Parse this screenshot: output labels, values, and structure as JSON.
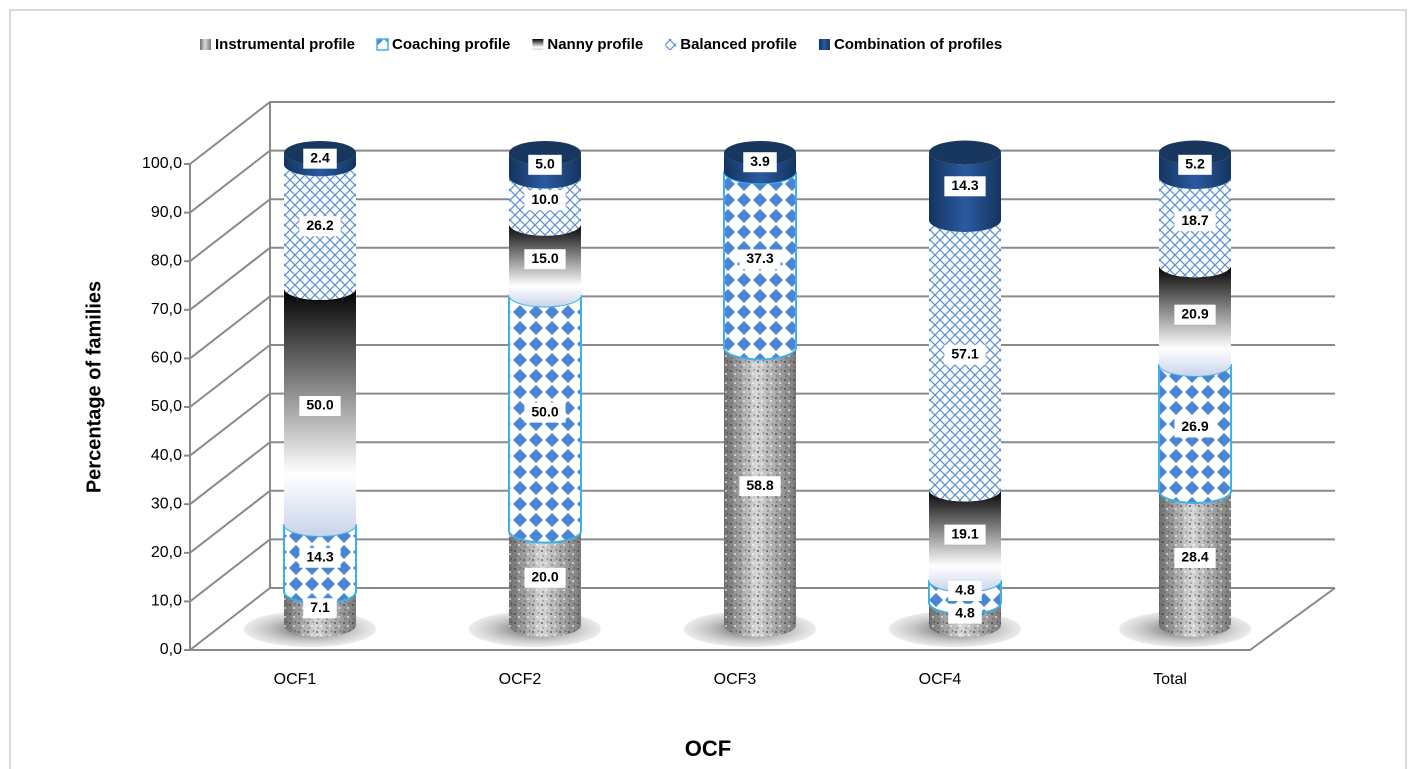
{
  "chart_data": {
    "type": "bar3d_stacked_cylinder",
    "x_label": "OCF",
    "y_label": "Percentage of families",
    "categories": [
      "OCF1",
      "OCF2",
      "OCF3",
      "OCF4",
      "Total"
    ],
    "series": [
      {
        "name": "Instrumental profile",
        "color": "#8c8c8c",
        "values": [
          7.1,
          20.0,
          58.8,
          4.8,
          28.4
        ],
        "value_labels": [
          "7.1",
          "20.0",
          "58.8",
          "4.8",
          "28.4"
        ]
      },
      {
        "name": "Coaching profile",
        "color": "#4a86d4",
        "values": [
          14.3,
          50.0,
          37.3,
          4.8,
          26.9
        ],
        "value_labels": [
          "14.3",
          "50.0",
          "37.3",
          "4.8",
          "26.9"
        ]
      },
      {
        "name": "Nanny profile",
        "color": "#000000",
        "values": [
          50.0,
          15.0,
          null,
          19.1,
          20.9
        ],
        "value_labels": [
          "50.0",
          "15.0",
          null,
          "19.1",
          "20.9"
        ]
      },
      {
        "name": "Balanced profile",
        "color": "#5b8fd6",
        "values": [
          26.2,
          10.0,
          null,
          57.1,
          18.7
        ],
        "value_labels": [
          "26.2",
          "10.0",
          null,
          "57.1",
          "18.7"
        ]
      },
      {
        "name": "Combination of profiles",
        "color": "#1f4e8c",
        "values": [
          2.4,
          5.0,
          3.9,
          14.3,
          5.2
        ],
        "value_labels": [
          "2.4",
          "5.0",
          "3.9",
          "14.3",
          "5.2"
        ]
      }
    ],
    "ylim": [
      0,
      100
    ],
    "yticks": [
      {
        "value": 0,
        "label": "0,0"
      },
      {
        "value": 10,
        "label": "10,0"
      },
      {
        "value": 20,
        "label": "20,0"
      },
      {
        "value": 30,
        "label": "30,0"
      },
      {
        "value": 40,
        "label": "40,0"
      },
      {
        "value": 50,
        "label": "50,0"
      },
      {
        "value": 60,
        "label": "60,0"
      },
      {
        "value": 70,
        "label": "70,0"
      },
      {
        "value": 80,
        "label": "80,0"
      },
      {
        "value": 90,
        "label": "90,0"
      },
      {
        "value": 100,
        "label": "100,0"
      }
    ],
    "grid": true,
    "legend": "top"
  }
}
